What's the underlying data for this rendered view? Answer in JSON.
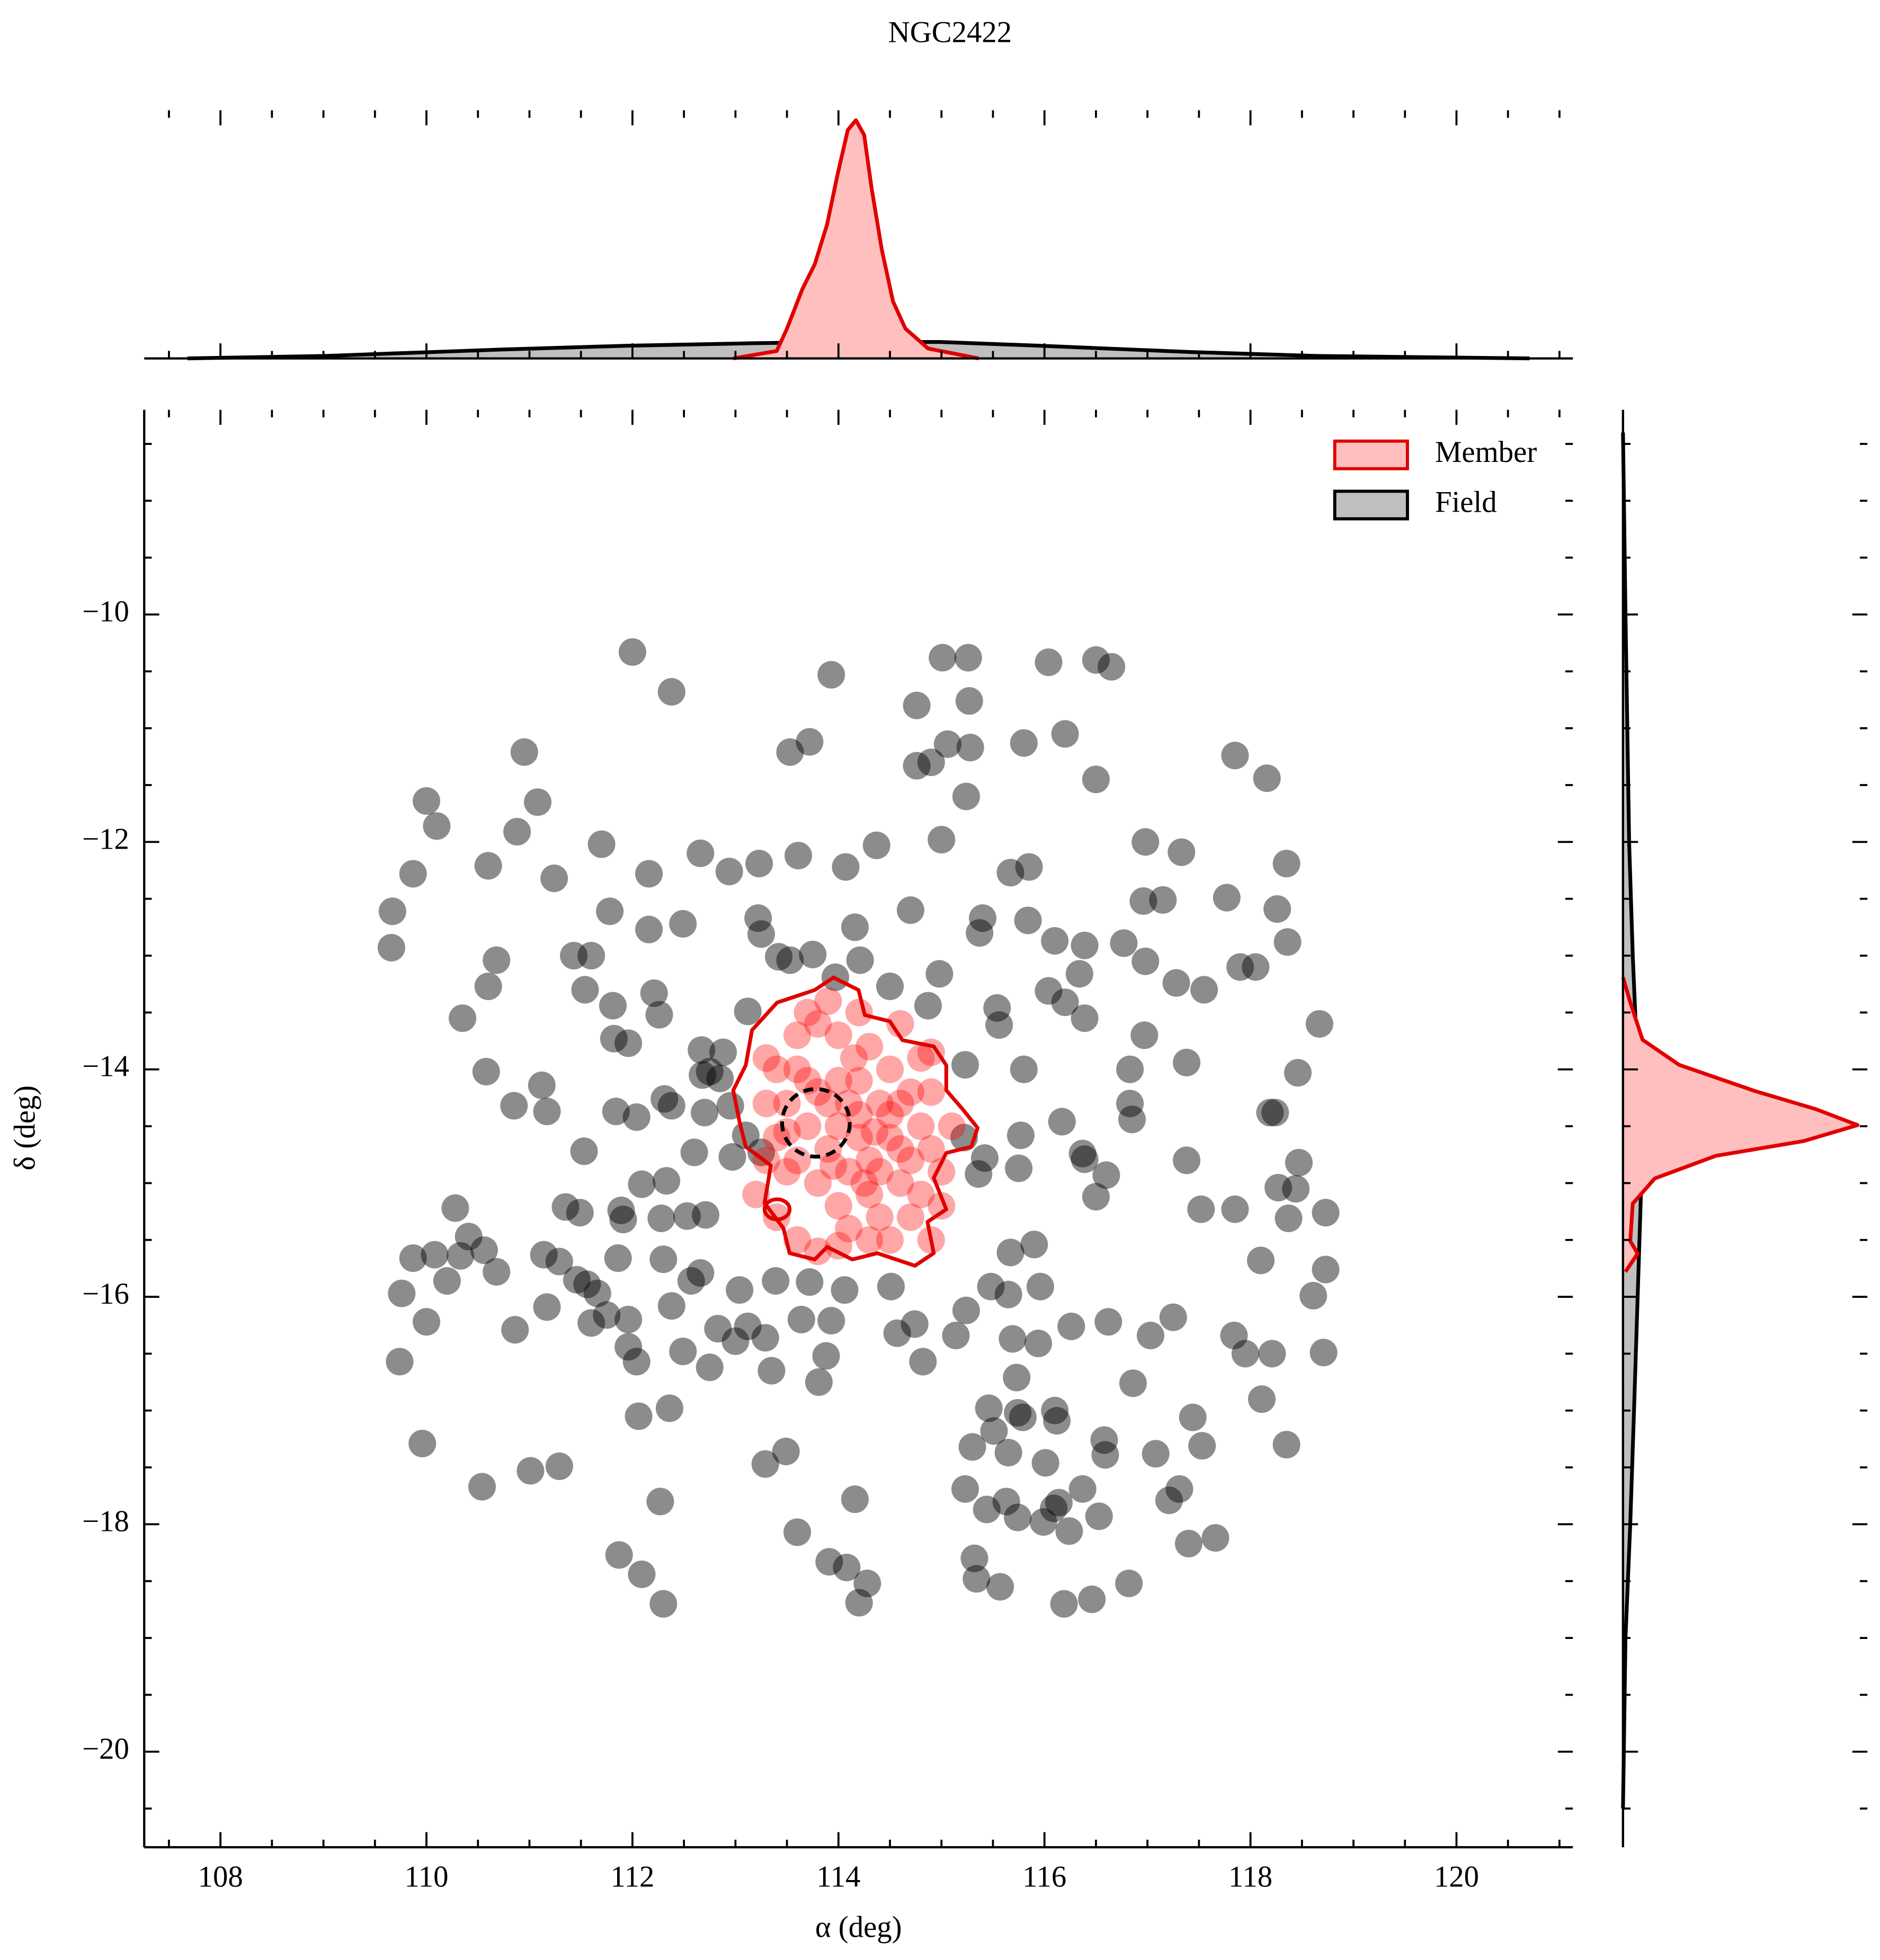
{
  "chart_data": [
    {
      "type": "scatter",
      "title": "NGC2422",
      "xlabel": "α (deg)",
      "ylabel": "δ (deg)",
      "xlim": [
        107.26,
        121.13
      ],
      "ylim": [
        -20.84,
        -8.2
      ],
      "xticks": [
        108,
        110,
        112,
        114,
        116,
        118,
        120
      ],
      "yticks": [
        {
          "value": -10,
          "label": "−10"
        },
        {
          "value": -12,
          "label": "−12"
        },
        {
          "value": -14,
          "label": "−14"
        },
        {
          "value": -16,
          "label": "−16"
        },
        {
          "value": -18,
          "label": "−18"
        },
        {
          "value": -20,
          "label": "−20"
        }
      ],
      "xminorticks": [
        107.5,
        108.5,
        109,
        109.5,
        110.5,
        111,
        111.5,
        112.5,
        113,
        113.5,
        114.5,
        115,
        115.5,
        116.5,
        117,
        117.5,
        118.5,
        119,
        119.5,
        120.5,
        121
      ],
      "yminorticks": [
        -8.5,
        -9,
        -9.5,
        -10.5,
        -11,
        -11.5,
        -12.5,
        -13,
        -13.5,
        -14.5,
        -15,
        -15.5,
        -16.5,
        -17,
        -17.5,
        -18.5,
        -19,
        -19.5,
        -20.5
      ],
      "legend": "upper right",
      "series": [
        {
          "name": "Field",
          "color": "#000000",
          "alpha": 0.45,
          "x": [
            112.0,
            112.38,
            113.93,
            115.01,
            115.26,
            116.04,
            116.5,
            116.65,
            115.27,
            114.76,
            113.72,
            113.53,
            115.06,
            115.28,
            114.9,
            114.76,
            115.8,
            116.2,
            116.5,
            115.24,
            117.85,
            118.16,
            110.95,
            111.08,
            110.0,
            110.1,
            110.88,
            109.87,
            110.6,
            111.24,
            111.7,
            112.16,
            112.66,
            112.94,
            113.23,
            113.61,
            114.07,
            114.37,
            115.0,
            115.67,
            115.85,
            116.98,
            117.33,
            118.35,
            116.96,
            117.15,
            117.77,
            118.26,
            109.67,
            109.66,
            111.78,
            112.16,
            112.49,
            113.22,
            113.25,
            114.7,
            114.16,
            115.4,
            115.37,
            115.84,
            116.1,
            116.39,
            116.77,
            118.36,
            110.68,
            111.43,
            111.6,
            113.42,
            113.53,
            113.75,
            114.21,
            114.98,
            116.34,
            116.98,
            118.05,
            117.9,
            110.6,
            111.54,
            112.21,
            113.97,
            114.5,
            117.28,
            117.55,
            116.2,
            116.04,
            110.35,
            111.81,
            112.26,
            113.12,
            114.87,
            115.54,
            115.56,
            116.39,
            116.97,
            118.67,
            111.82,
            111.96,
            112.67,
            112.88,
            110.58,
            111.12,
            112.75,
            115.23,
            115.8,
            116.83,
            117.38,
            118.46,
            110.85,
            111.17,
            111.84,
            112.04,
            112.31,
            112.38,
            116.83,
            116.85,
            116.17,
            118.19,
            118.24,
            115.77,
            115.22,
            111.53,
            116.37,
            116.39,
            117.38,
            118.47,
            112.97,
            115.42,
            115.36,
            115.75,
            116.6,
            112.09,
            112.33,
            118.27,
            118.44,
            116.5,
            110.28,
            111.35,
            111.49,
            111.89,
            111.91,
            112.28,
            112.53,
            112.71,
            117.52,
            117.85,
            118.37,
            118.73,
            110.41,
            109.87,
            110.08,
            110.33,
            110.56,
            110.68,
            111.14,
            111.29,
            111.86,
            112.3,
            115.67,
            115.9,
            118.1,
            118.73,
            109.76,
            110.2,
            111.46,
            111.56,
            112.66,
            112.57,
            113.04,
            113.39,
            113.72,
            114.06,
            114.51,
            115.48,
            115.65,
            115.96,
            118.61,
            111.66,
            110.0,
            110.86,
            111.17,
            111.6,
            111.75,
            111.96,
            112.38,
            112.83,
            113.0,
            113.12,
            113.29,
            113.64,
            113.93,
            114.74,
            114.57,
            115.14,
            115.24,
            115.69,
            115.94,
            116.26,
            116.62,
            117.03,
            117.25,
            117.84,
            117.95,
            118.21,
            118.71,
            109.74,
            111.96,
            112.04,
            112.49,
            112.75,
            113.35,
            113.88,
            113.81,
            114.82,
            115.73,
            116.86,
            118.11,
            112.06,
            112.36,
            115.46,
            115.74,
            115.79,
            116.1,
            116.12,
            115.51,
            117.44,
            109.96,
            115.3,
            115.65,
            116.58,
            116.59,
            117.08,
            117.53,
            118.35,
            113.49,
            113.29,
            111.29,
            111.01,
            116.01,
            110.54,
            115.23,
            116.37,
            117.31,
            114.16,
            112.27,
            115.63,
            116.14,
            117.21,
            115.44,
            115.74,
            116.09,
            116.53,
            115.99,
            116.24,
            113.6,
            117.66,
            117.4,
            111.87,
            113.91,
            115.32,
            112.09,
            114.08,
            115.34,
            115.57,
            114.28,
            116.82,
            112.3,
            114.2,
            116.19,
            116.46,
            112.68,
            112.85,
            112.7,
            112.95,
            112.6,
            113.1,
            113.25
          ],
          "values": [
            -10.33,
            -10.68,
            -10.53,
            -10.38,
            -10.38,
            -10.42,
            -10.4,
            -10.46,
            -10.76,
            -10.8,
            -11.12,
            -11.21,
            -11.14,
            -11.17,
            -11.3,
            -11.33,
            -11.13,
            -11.05,
            -11.45,
            -11.6,
            -11.24,
            -11.44,
            -11.21,
            -11.65,
            -11.64,
            -11.86,
            -11.91,
            -12.28,
            -12.21,
            -12.32,
            -12.02,
            -12.28,
            -12.1,
            -12.26,
            -12.19,
            -12.12,
            -12.22,
            -12.03,
            -11.98,
            -12.27,
            -12.22,
            -12.0,
            -12.09,
            -12.19,
            -12.52,
            -12.51,
            -12.49,
            -12.59,
            -12.61,
            -12.93,
            -12.61,
            -12.77,
            -12.72,
            -12.67,
            -12.81,
            -12.6,
            -12.75,
            -12.67,
            -12.8,
            -12.69,
            -12.87,
            -12.91,
            -12.89,
            -12.88,
            -13.04,
            -13.0,
            -13.0,
            -13.01,
            -13.04,
            -12.99,
            -13.04,
            -13.16,
            -13.16,
            -13.05,
            -13.1,
            -13.1,
            -13.27,
            -13.3,
            -13.33,
            -13.19,
            -13.27,
            -13.24,
            -13.3,
            -13.41,
            -13.31,
            -13.55,
            -13.44,
            -13.52,
            -13.49,
            -13.44,
            -13.46,
            -13.61,
            -13.55,
            -13.7,
            -13.6,
            -13.73,
            -13.77,
            -13.83,
            -13.85,
            -14.02,
            -14.14,
            -14.02,
            -13.96,
            -14.0,
            -14.0,
            -13.94,
            -14.03,
            -14.32,
            -14.37,
            -14.37,
            -14.42,
            -14.26,
            -14.32,
            -14.3,
            -14.44,
            -14.46,
            -14.38,
            -14.38,
            -14.58,
            -14.6,
            -14.72,
            -14.74,
            -14.79,
            -14.8,
            -14.82,
            -14.77,
            -14.78,
            -14.92,
            -14.87,
            -14.93,
            -15.01,
            -14.98,
            -15.04,
            -15.05,
            -15.12,
            -15.22,
            -15.21,
            -15.26,
            -15.24,
            -15.32,
            -15.31,
            -15.29,
            -15.28,
            -15.23,
            -15.23,
            -15.31,
            -15.26,
            -15.47,
            -15.66,
            -15.63,
            -15.64,
            -15.59,
            -15.78,
            -15.63,
            -15.69,
            -15.66,
            -15.67,
            -15.61,
            -15.54,
            -15.68,
            -15.76,
            -15.97,
            -15.86,
            -15.85,
            -15.89,
            -15.79,
            -15.86,
            -15.94,
            -15.86,
            -15.87,
            -15.94,
            -15.91,
            -15.91,
            -15.98,
            -15.91,
            -15.99,
            -15.97,
            -16.22,
            -16.29,
            -16.09,
            -16.23,
            -16.16,
            -16.2,
            -16.08,
            -16.28,
            -16.39,
            -16.26,
            -16.36,
            -16.2,
            -16.21,
            -16.24,
            -16.32,
            -16.34,
            -16.12,
            -16.37,
            -16.41,
            -16.26,
            -16.22,
            -16.34,
            -16.18,
            -16.34,
            -16.5,
            -16.5,
            -16.49,
            -16.57,
            -16.44,
            -16.57,
            -16.48,
            -16.62,
            -16.65,
            -16.52,
            -16.75,
            -16.57,
            -16.71,
            -16.76,
            -16.9,
            -17.05,
            -16.98,
            -16.98,
            -17.02,
            -17.06,
            -17.0,
            -17.09,
            -17.18,
            -17.06,
            -17.29,
            -17.32,
            -17.37,
            -17.26,
            -17.39,
            -17.38,
            -17.31,
            -17.3,
            -17.36,
            -17.47,
            -17.49,
            -17.53,
            -17.46,
            -17.67,
            -17.69,
            -17.69,
            -17.69,
            -17.78,
            -17.8,
            -17.8,
            -17.81,
            -17.79,
            -17.87,
            -17.94,
            -17.86,
            -17.93,
            -17.98,
            -18.06,
            -18.07,
            -18.12,
            -18.17,
            -18.27,
            -18.33,
            -18.3,
            -18.44,
            -18.38,
            -18.48,
            -18.55,
            -18.52,
            -18.52,
            -18.7,
            -18.69,
            -18.7,
            -18.66,
            -14.05,
            -14.08,
            -14.38,
            -14.32,
            -14.73,
            -14.58,
            -14.73
          ]
        },
        {
          "name": "Member",
          "color": "#ff0000",
          "alpha": 0.35,
          "x": [
            113.6,
            113.8,
            114.0,
            114.2,
            114.4,
            114.5,
            114.3,
            114.1,
            113.9,
            113.7,
            113.5,
            113.6,
            113.8,
            114.0,
            114.3,
            114.6,
            114.7,
            114.8,
            114.7,
            114.5,
            114.3,
            114.0,
            113.8,
            113.6,
            113.4,
            113.3,
            113.4,
            113.5,
            113.3,
            114.9,
            115.0,
            114.9,
            114.8,
            114.2,
            113.9,
            113.7,
            114.4,
            114.1,
            114.7,
            114.3,
            113.8,
            113.6,
            114.5,
            114.9,
            115.0,
            114.6,
            113.2,
            113.4,
            114.2,
            114.1,
            114.5,
            114.4,
            113.9,
            114.0,
            114.6,
            114.2,
            113.95,
            114.35,
            114.25,
            113.7,
            114.6,
            114.15,
            113.5,
            114.8,
            113.3,
            114.0,
            114.9,
            115.1
          ],
          "values": [
            -14.0,
            -14.2,
            -14.5,
            -14.4,
            -14.3,
            -14.6,
            -14.8,
            -14.9,
            -14.7,
            -14.5,
            -14.3,
            -14.8,
            -15.0,
            -15.2,
            -15.1,
            -15.0,
            -14.8,
            -14.5,
            -14.2,
            -14.0,
            -13.8,
            -13.7,
            -13.6,
            -13.7,
            -14.0,
            -14.3,
            -14.6,
            -14.9,
            -14.8,
            -14.7,
            -14.9,
            -14.2,
            -13.9,
            -13.5,
            -13.4,
            -13.5,
            -15.3,
            -15.4,
            -15.3,
            -15.5,
            -15.6,
            -15.5,
            -15.5,
            -15.5,
            -15.2,
            -13.6,
            -15.1,
            -15.3,
            -14.1,
            -14.3,
            -14.4,
            -14.9,
            -14.3,
            -14.1,
            -14.7,
            -14.6,
            -14.85,
            -14.55,
            -15.0,
            -14.1,
            -14.3,
            -13.9,
            -14.55,
            -15.1,
            -13.9,
            -15.55,
            -13.85,
            -14.5
          ]
        }
      ]
    },
    {
      "type": "kde",
      "orientation": "vertical",
      "ylim": [
        0,
        1
      ],
      "series": [
        {
          "color": "#000000",
          "fill": "#bfbfbf",
          "x": [
            107.68,
            109.02,
            110.73,
            111.94,
            113.16,
            114.0,
            114.99,
            115.96,
            117.42,
            118.64,
            120.71
          ],
          "values": [
            0,
            0.01,
            0.036,
            0.051,
            0.061,
            0.066,
            0.066,
            0.051,
            0.026,
            0.01,
            0
          ]
        },
        {
          "color": "#e00000",
          "fill": "#ffbfbf",
          "x": [
            112.98,
            113.4,
            113.5,
            113.65,
            113.77,
            113.89,
            113.99,
            114.09,
            114.17,
            114.25,
            114.32,
            114.42,
            114.53,
            114.65,
            114.87,
            115.36
          ],
          "values": [
            0,
            0.03,
            0.12,
            0.28,
            0.38,
            0.54,
            0.74,
            0.92,
            0.96,
            0.9,
            0.69,
            0.44,
            0.23,
            0.12,
            0.04,
            0
          ]
        }
      ]
    },
    {
      "type": "kde",
      "orientation": "horizontal",
      "xlim": [
        0,
        1
      ],
      "series": [
        {
          "color": "#000000",
          "fill": "#bfbfbf",
          "y": [
            -8.4,
            -10,
            -12,
            -13,
            -14,
            -14.5,
            -15,
            -16,
            -17,
            -18,
            -19,
            -20.5
          ],
          "values": [
            0,
            0.01,
            0.025,
            0.04,
            0.06,
            0.07,
            0.075,
            0.06,
            0.045,
            0.03,
            0.01,
            0
          ]
        },
        {
          "color": "#e00000",
          "fill": "#ffbfbf",
          "y": [
            -13.19,
            -13.41,
            -13.74,
            -13.96,
            -14.19,
            -14.35,
            -14.49,
            -14.63,
            -14.76,
            -14.96,
            -15.18,
            -15.51,
            -15.62,
            -15.78
          ],
          "values": [
            0,
            0.03,
            0.08,
            0.23,
            0.54,
            0.79,
            0.96,
            0.74,
            0.38,
            0.13,
            0.04,
            0.03,
            0.06,
            0.01
          ]
        }
      ]
    }
  ]
}
